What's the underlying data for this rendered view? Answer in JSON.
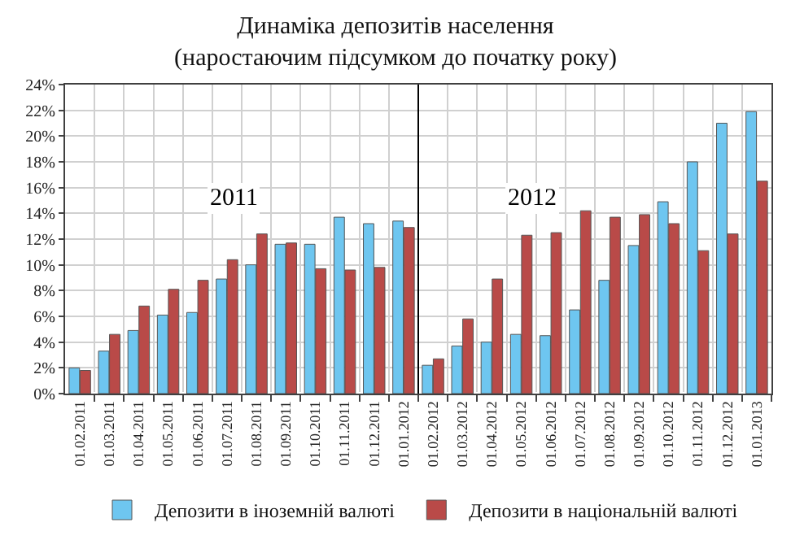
{
  "chart_data": {
    "type": "bar",
    "title": "Динаміка депозитів населення\n(наростаючим підсумком до початку року)",
    "categories": [
      "01.02.2011",
      "01.03.2011",
      "01.04.2011",
      "01.05.2011",
      "01.06.2011",
      "01.07.2011",
      "01.08.2011",
      "01.09.2011",
      "01.10.2011",
      "01.11.2011",
      "01.12.2011",
      "01.01.2012",
      "01.02.2012",
      "01.03.2012",
      "01.04.2012",
      "01.05.2012",
      "01.06.2012",
      "01.07.2012",
      "01.08.2012",
      "01.09.2012",
      "01.10.2012",
      "01.11.2012",
      "01.12.2012",
      "01.01.2013"
    ],
    "series": [
      {
        "name": "Депозити в іноземній валюті",
        "color": "#6ec6f0",
        "values": [
          2.0,
          3.3,
          4.9,
          6.1,
          6.3,
          8.9,
          10.0,
          11.6,
          11.6,
          13.7,
          13.2,
          13.4,
          2.2,
          3.7,
          4.0,
          4.6,
          4.5,
          6.5,
          8.8,
          11.5,
          14.9,
          18.0,
          21.0,
          21.9
        ]
      },
      {
        "name": "Депозити в національній валюті",
        "color": "#b94a48",
        "values": [
          1.8,
          4.6,
          6.8,
          8.1,
          8.8,
          10.4,
          12.4,
          11.7,
          9.7,
          9.6,
          9.8,
          12.9,
          2.7,
          5.8,
          8.9,
          12.3,
          12.5,
          14.2,
          13.7,
          13.9,
          13.2,
          11.1,
          12.4,
          16.5
        ]
      }
    ],
    "ylim": [
      0,
      24
    ],
    "yticks": [
      {
        "value": 0,
        "label": "0%"
      },
      {
        "value": 2,
        "label": "2%"
      },
      {
        "value": 4,
        "label": "4%"
      },
      {
        "value": 6,
        "label": "6%"
      },
      {
        "value": 8,
        "label": "8%"
      },
      {
        "value": 10,
        "label": "10%"
      },
      {
        "value": 12,
        "label": "12%"
      },
      {
        "value": 14,
        "label": "14%"
      },
      {
        "value": 16,
        "label": "16%"
      },
      {
        "value": 18,
        "label": "18%"
      },
      {
        "value": 20,
        "label": "20%"
      },
      {
        "value": 22,
        "label": "22%"
      },
      {
        "value": 24,
        "label": "24%"
      }
    ],
    "annotations": [
      "2011",
      "2012"
    ],
    "ref_lines": [
      {
        "axis": "x",
        "value": "01.02.2012",
        "color": "#000000"
      }
    ],
    "grid": true,
    "legend": "bottom"
  }
}
